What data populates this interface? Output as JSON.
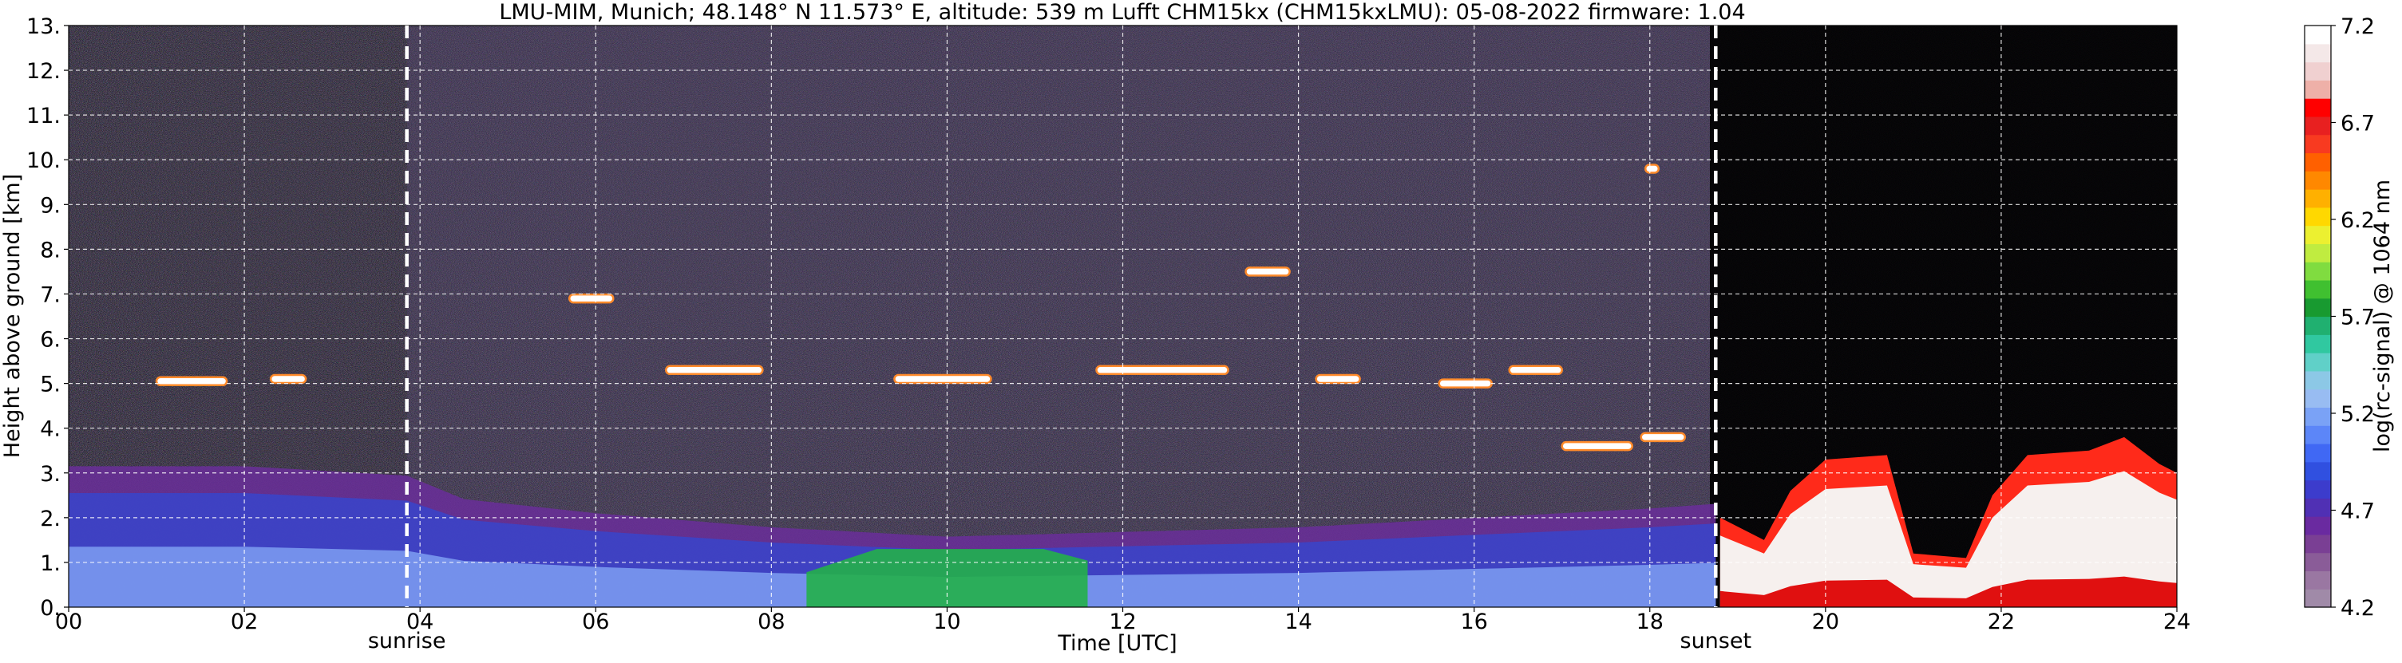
{
  "chart_data": {
    "type": "heatmap",
    "title": "LMU-MIM, Munich; 48.148° N 11.573° E, altitude: 539 m    Lufft CHM15kx (CHM15kxLMU): 05-08-2022    firmware: 1.04",
    "xlabel": "Time [UTC]",
    "ylabel": "Height above ground [km]",
    "x_ticks": [
      "00",
      "02",
      "04",
      "06",
      "08",
      "10",
      "12",
      "14",
      "16",
      "18",
      "20",
      "22",
      "24"
    ],
    "x_tick_values": [
      0,
      2,
      4,
      6,
      8,
      10,
      12,
      14,
      16,
      18,
      20,
      22,
      24
    ],
    "y_ticks": [
      "0.",
      "1.",
      "2.",
      "3.",
      "4.",
      "5.",
      "6.",
      "7.",
      "8.",
      "9.",
      "10.",
      "11.",
      "12.",
      "13."
    ],
    "y_tick_values": [
      0,
      1,
      2,
      3,
      4,
      5,
      6,
      7,
      8,
      9,
      10,
      11,
      12,
      13
    ],
    "xlim": [
      0,
      24
    ],
    "ylim": [
      0,
      13
    ],
    "grid": true,
    "colorbar": {
      "label": "log(rc-signal) @ 1064 nm",
      "range": [
        4.2,
        7.2
      ],
      "tick_labels": [
        "4.2",
        "4.7",
        "5.2",
        "5.7",
        "6.2",
        "6.7",
        "7.2"
      ],
      "tick_values": [
        4.2,
        4.7,
        5.2,
        5.7,
        6.2,
        6.7,
        7.2
      ],
      "colors": [
        "#a08aa8",
        "#9a77a2",
        "#8a5c98",
        "#7a3f94",
        "#6a2aa0",
        "#5030b4",
        "#3c3ccc",
        "#3050e0",
        "#4068f4",
        "#5c86f8",
        "#7aa2f6",
        "#98bcf2",
        "#8cc8e6",
        "#60d0c8",
        "#30c8a0",
        "#20b070",
        "#189a30",
        "#40c030",
        "#80dc40",
        "#c0ec40",
        "#ecf030",
        "#ffd800",
        "#ffb000",
        "#ff8800",
        "#ff6000",
        "#f83a20",
        "#e82020",
        "#ff0000",
        "#eeb0a8",
        "#f0d0d0",
        "#f4e8e8",
        "#ffffff"
      ]
    },
    "vertical_markers": [
      {
        "label": "sunrise",
        "time": 3.85
      },
      {
        "label": "sunset",
        "time": 18.75
      }
    ],
    "features": {
      "residual_layer_tops_km": [
        [
          0,
          3.0
        ],
        [
          2,
          3.0
        ],
        [
          3.85,
          2.8
        ],
        [
          4.5,
          2.3
        ],
        [
          6,
          2.0
        ],
        [
          8,
          1.7
        ],
        [
          10,
          1.5
        ],
        [
          12,
          1.6
        ],
        [
          14,
          1.7
        ],
        [
          16,
          1.9
        ],
        [
          18,
          2.1
        ],
        [
          18.75,
          2.2
        ]
      ],
      "green_boundary_layer": {
        "start": 8.4,
        "end": 11.6,
        "top_km": 1.3
      },
      "cloud_segments": [
        {
          "t0": 1.0,
          "t1": 1.8,
          "h": 5.05
        },
        {
          "t0": 2.3,
          "t1": 2.7,
          "h": 5.1
        },
        {
          "t0": 5.7,
          "t1": 6.2,
          "h": 6.9
        },
        {
          "t0": 6.8,
          "t1": 7.9,
          "h": 5.3
        },
        {
          "t0": 9.4,
          "t1": 10.5,
          "h": 5.1
        },
        {
          "t0": 11.7,
          "t1": 13.2,
          "h": 5.3
        },
        {
          "t0": 13.4,
          "t1": 13.9,
          "h": 7.5
        },
        {
          "t0": 14.2,
          "t1": 14.7,
          "h": 5.1
        },
        {
          "t0": 15.6,
          "t1": 16.2,
          "h": 5.0
        },
        {
          "t0": 16.4,
          "t1": 17.0,
          "h": 5.3
        },
        {
          "t0": 17.0,
          "t1": 17.8,
          "h": 3.6
        },
        {
          "t0": 17.9,
          "t1": 18.4,
          "h": 3.8
        },
        {
          "t0": 17.95,
          "t1": 18.1,
          "h": 9.8
        }
      ],
      "night_aerosol_column": [
        [
          18.8,
          2.0
        ],
        [
          19.3,
          1.5
        ],
        [
          19.6,
          2.6
        ],
        [
          20.0,
          3.3
        ],
        [
          20.7,
          3.4
        ],
        [
          21.0,
          1.2
        ],
        [
          21.6,
          1.1
        ],
        [
          21.9,
          2.5
        ],
        [
          22.3,
          3.4
        ],
        [
          23.0,
          3.5
        ],
        [
          23.4,
          3.8
        ],
        [
          23.8,
          3.2
        ],
        [
          24.0,
          3.0
        ]
      ]
    }
  }
}
